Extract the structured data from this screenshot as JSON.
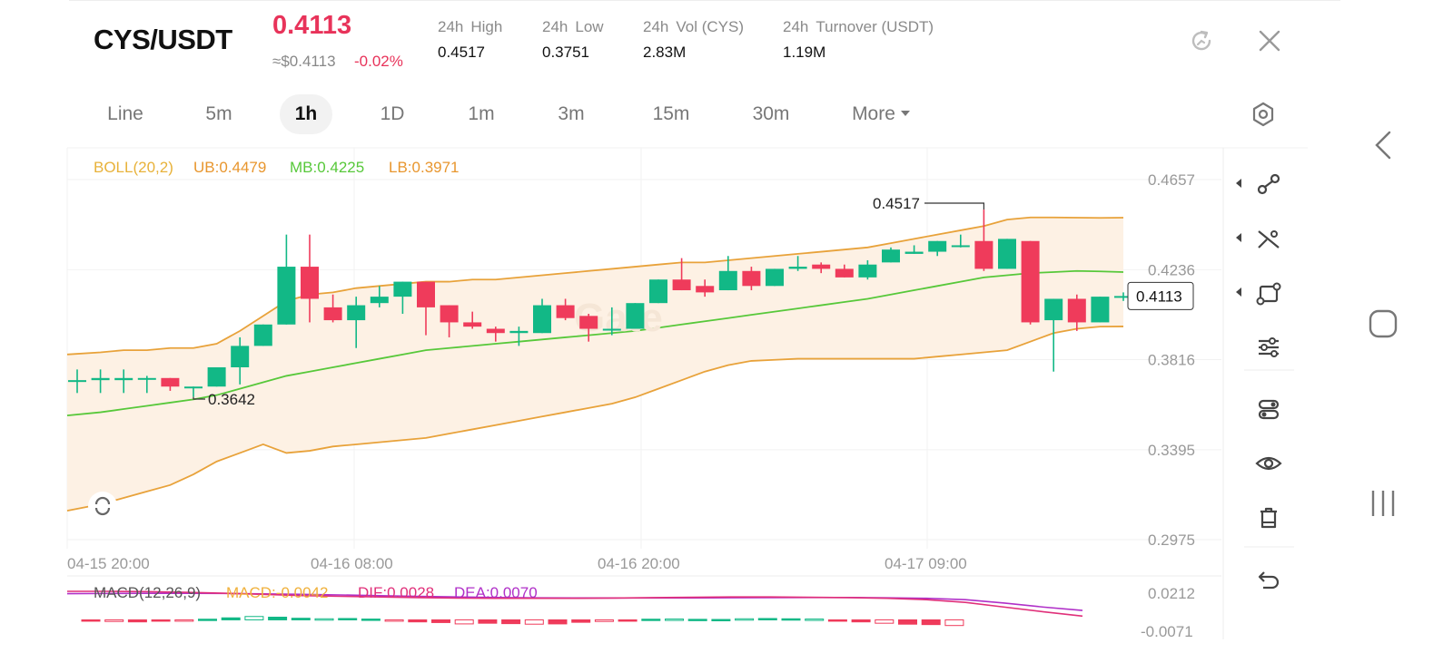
{
  "header": {
    "pair": "CYS/USDT",
    "price": "0.4113",
    "usd_price": "≈$0.4113",
    "change": "-0.02%",
    "stats": [
      {
        "period": "24h",
        "label": "High",
        "value": "0.4517"
      },
      {
        "period": "24h",
        "label": "Low",
        "value": "0.3751"
      },
      {
        "period": "24h",
        "label": "Vol (CYS)",
        "value": "2.83M"
      },
      {
        "period": "24h",
        "label": "Turnover (USDT)",
        "value": "1.19M"
      }
    ]
  },
  "tabs": [
    "Line",
    "5m",
    "1h",
    "1D",
    "1m",
    "3m",
    "15m",
    "30m",
    "More"
  ],
  "active_tab": "1h",
  "colors": {
    "up": "#12b886",
    "down": "#ef3b5b",
    "ub": "#e8a23a",
    "mb": "#57c83a",
    "lb": "#e8a23a",
    "band_fill": "#fdf1e4",
    "price_red": "#e8335a"
  },
  "indicators": {
    "boll": {
      "name": "BOLL(20,2)",
      "ub": "UB:0.4479",
      "mb": "MB:0.4225",
      "lb": "LB:0.3971"
    },
    "macd": {
      "name": "MACD(12,26,9)",
      "macd": "MACD:-0.0042",
      "dif": "DIF:0.0028",
      "dea": "DEA:0.0070"
    }
  },
  "chart_data": {
    "type": "candlestick",
    "y_ticks": [
      "0.4657",
      "0.4236",
      "0.3816",
      "0.3395",
      "0.2975"
    ],
    "ylim": [
      0.2975,
      0.4657
    ],
    "x_ticks": [
      "04-15 20:00",
      "04-16 08:00",
      "04-16 20:00",
      "04-17 09:00"
    ],
    "last_price_label": "0.4113",
    "max_marker": "0.4517",
    "min_marker": "0.3642",
    "candles": [
      {
        "o": 0.372,
        "h": 0.377,
        "l": 0.366,
        "c": 0.372
      },
      {
        "o": 0.372,
        "h": 0.377,
        "l": 0.366,
        "c": 0.373
      },
      {
        "o": 0.372,
        "h": 0.377,
        "l": 0.366,
        "c": 0.373
      },
      {
        "o": 0.373,
        "h": 0.374,
        "l": 0.366,
        "c": 0.373
      },
      {
        "o": 0.373,
        "h": 0.373,
        "l": 0.367,
        "c": 0.369
      },
      {
        "o": 0.369,
        "h": 0.369,
        "l": 0.3642,
        "c": 0.369
      },
      {
        "o": 0.369,
        "h": 0.378,
        "l": 0.369,
        "c": 0.378
      },
      {
        "o": 0.378,
        "h": 0.392,
        "l": 0.37,
        "c": 0.388
      },
      {
        "o": 0.388,
        "h": 0.398,
        "l": 0.388,
        "c": 0.398
      },
      {
        "o": 0.398,
        "h": 0.44,
        "l": 0.398,
        "c": 0.425
      },
      {
        "o": 0.425,
        "h": 0.44,
        "l": 0.399,
        "c": 0.41
      },
      {
        "o": 0.406,
        "h": 0.412,
        "l": 0.399,
        "c": 0.4
      },
      {
        "o": 0.4,
        "h": 0.411,
        "l": 0.387,
        "c": 0.407
      },
      {
        "o": 0.408,
        "h": 0.416,
        "l": 0.406,
        "c": 0.411
      },
      {
        "o": 0.411,
        "h": 0.418,
        "l": 0.403,
        "c": 0.418
      },
      {
        "o": 0.418,
        "h": 0.418,
        "l": 0.393,
        "c": 0.406
      },
      {
        "o": 0.407,
        "h": 0.407,
        "l": 0.392,
        "c": 0.399
      },
      {
        "o": 0.399,
        "h": 0.404,
        "l": 0.396,
        "c": 0.397
      },
      {
        "o": 0.396,
        "h": 0.397,
        "l": 0.39,
        "c": 0.394
      },
      {
        "o": 0.394,
        "h": 0.397,
        "l": 0.388,
        "c": 0.395
      },
      {
        "o": 0.394,
        "h": 0.41,
        "l": 0.394,
        "c": 0.407
      },
      {
        "o": 0.407,
        "h": 0.41,
        "l": 0.4,
        "c": 0.401
      },
      {
        "o": 0.402,
        "h": 0.403,
        "l": 0.39,
        "c": 0.396
      },
      {
        "o": 0.396,
        "h": 0.406,
        "l": 0.393,
        "c": 0.396
      },
      {
        "o": 0.396,
        "h": 0.408,
        "l": 0.396,
        "c": 0.408
      },
      {
        "o": 0.408,
        "h": 0.419,
        "l": 0.408,
        "c": 0.419
      },
      {
        "o": 0.419,
        "h": 0.429,
        "l": 0.414,
        "c": 0.414
      },
      {
        "o": 0.416,
        "h": 0.419,
        "l": 0.411,
        "c": 0.413
      },
      {
        "o": 0.414,
        "h": 0.43,
        "l": 0.414,
        "c": 0.423
      },
      {
        "o": 0.423,
        "h": 0.425,
        "l": 0.414,
        "c": 0.416
      },
      {
        "o": 0.416,
        "h": 0.424,
        "l": 0.416,
        "c": 0.424
      },
      {
        "o": 0.424,
        "h": 0.43,
        "l": 0.423,
        "c": 0.425
      },
      {
        "o": 0.426,
        "h": 0.427,
        "l": 0.422,
        "c": 0.424
      },
      {
        "o": 0.424,
        "h": 0.426,
        "l": 0.42,
        "c": 0.42
      },
      {
        "o": 0.42,
        "h": 0.428,
        "l": 0.419,
        "c": 0.426
      },
      {
        "o": 0.427,
        "h": 0.434,
        "l": 0.427,
        "c": 0.433
      },
      {
        "o": 0.431,
        "h": 0.435,
        "l": 0.431,
        "c": 0.432
      },
      {
        "o": 0.432,
        "h": 0.437,
        "l": 0.43,
        "c": 0.437
      },
      {
        "o": 0.435,
        "h": 0.44,
        "l": 0.434,
        "c": 0.435
      },
      {
        "o": 0.437,
        "h": 0.4517,
        "l": 0.423,
        "c": 0.424
      },
      {
        "o": 0.424,
        "h": 0.438,
        "l": 0.424,
        "c": 0.438
      },
      {
        "o": 0.437,
        "h": 0.437,
        "l": 0.398,
        "c": 0.399
      },
      {
        "o": 0.4,
        "h": 0.41,
        "l": 0.376,
        "c": 0.41
      },
      {
        "o": 0.41,
        "h": 0.412,
        "l": 0.395,
        "c": 0.399
      },
      {
        "o": 0.399,
        "h": 0.411,
        "l": 0.399,
        "c": 0.411
      },
      {
        "o": 0.4113,
        "h": 0.413,
        "l": 0.409,
        "c": 0.4113
      }
    ],
    "boll_ub": [
      0.384,
      0.385,
      0.386,
      0.386,
      0.387,
      0.387,
      0.389,
      0.395,
      0.402,
      0.409,
      0.412,
      0.413,
      0.415,
      0.416,
      0.417,
      0.418,
      0.418,
      0.419,
      0.419,
      0.42,
      0.421,
      0.422,
      0.423,
      0.424,
      0.425,
      0.426,
      0.427,
      0.427,
      0.428,
      0.429,
      0.43,
      0.431,
      0.432,
      0.433,
      0.434,
      0.436,
      0.438,
      0.44,
      0.442,
      0.444,
      0.447,
      0.448,
      0.448,
      0.4479,
      0.4478,
      0.4479
    ],
    "boll_mb": [
      0.3555,
      0.357,
      0.3585,
      0.36,
      0.3615,
      0.363,
      0.365,
      0.368,
      0.371,
      0.374,
      0.376,
      0.378,
      0.38,
      0.382,
      0.384,
      0.386,
      0.387,
      0.388,
      0.389,
      0.39,
      0.391,
      0.392,
      0.393,
      0.394,
      0.395,
      0.3965,
      0.398,
      0.3995,
      0.401,
      0.4025,
      0.404,
      0.4055,
      0.407,
      0.4085,
      0.41,
      0.412,
      0.414,
      0.416,
      0.418,
      0.42,
      0.421,
      0.422,
      0.4225,
      0.423,
      0.4228,
      0.4225
    ],
    "boll_lb": [
      0.311,
      0.314,
      0.317,
      0.32,
      0.323,
      0.328,
      0.334,
      0.338,
      0.342,
      0.338,
      0.339,
      0.341,
      0.342,
      0.343,
      0.344,
      0.345,
      0.347,
      0.349,
      0.351,
      0.353,
      0.355,
      0.357,
      0.359,
      0.361,
      0.364,
      0.368,
      0.372,
      0.376,
      0.379,
      0.381,
      0.3815,
      0.382,
      0.382,
      0.382,
      0.382,
      0.382,
      0.382,
      0.383,
      0.384,
      0.385,
      0.386,
      0.39,
      0.394,
      0.396,
      0.397,
      0.3971
    ],
    "macd_hist": [
      -0.001,
      -0.0012,
      -0.0015,
      -0.001,
      -0.0005,
      0.0005,
      0.0015,
      0.0025,
      0.002,
      0.0012,
      0.0008,
      0.001,
      0.0006,
      -0.001,
      -0.0015,
      -0.002,
      -0.003,
      -0.0025,
      -0.0028,
      -0.0032,
      -0.003,
      -0.0018,
      -0.0012,
      -0.0005,
      0.0005,
      0.0006,
      0.0004,
      0.0003,
      0.0008,
      0.001,
      0.0008,
      0.0006,
      -0.0008,
      -0.0015,
      -0.0025,
      -0.0032,
      -0.0035,
      -0.0042
    ],
    "macd_dif": [
      0.0212,
      0.0212,
      0.021,
      0.0205,
      0.0198,
      0.019,
      0.018,
      0.0175,
      0.017,
      0.0165,
      0.0162,
      0.016,
      0.016,
      0.016,
      0.0162,
      0.0165,
      0.0168,
      0.017,
      0.017,
      0.0168,
      0.0165,
      0.016,
      0.015,
      0.013,
      0.0095,
      0.006,
      0.0028
    ],
    "macd_dea": [
      0.0195,
      0.0196,
      0.0197,
      0.0197,
      0.0196,
      0.0193,
      0.019,
      0.0185,
      0.018,
      0.0175,
      0.017,
      0.0166,
      0.0164,
      0.0163,
      0.0163,
      0.0163,
      0.0163,
      0.0164,
      0.0165,
      0.0166,
      0.0166,
      0.0164,
      0.016,
      0.015,
      0.0125,
      0.0095,
      0.007
    ],
    "macd_ylim": [
      -0.0071,
      0.0212
    ],
    "macd_ticks": [
      "0.0212",
      "-0.0071"
    ]
  }
}
